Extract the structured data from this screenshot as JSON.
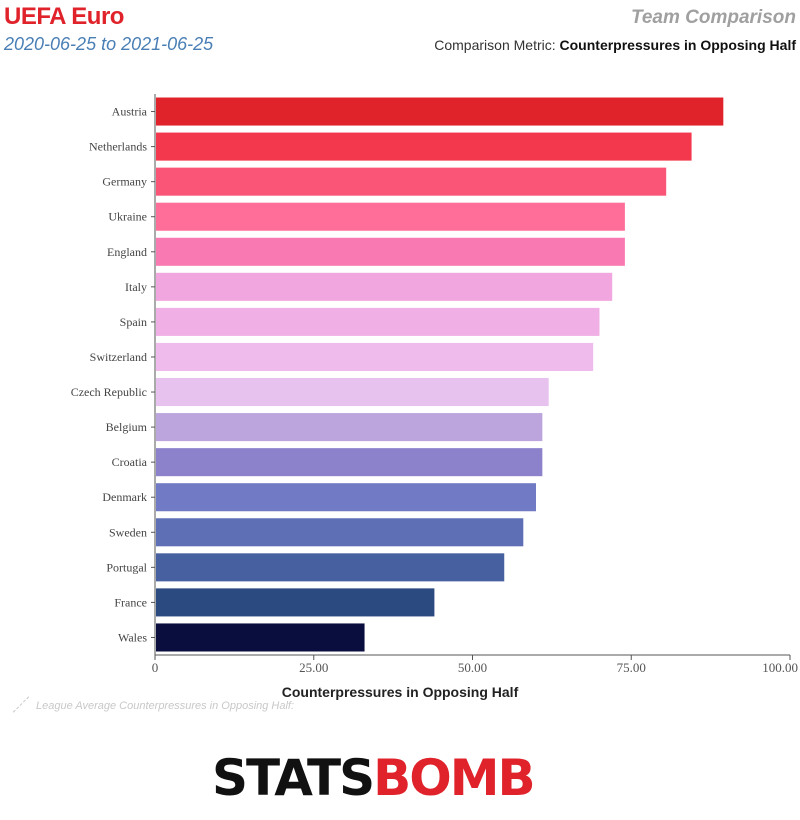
{
  "header": {
    "title": "UEFA Euro",
    "date_range": "2020-06-25 to 2021-06-25",
    "subtitle": "Team Comparison",
    "metric_prefix": "Comparison Metric: ",
    "metric_name": "Counterpressures in Opposing Half"
  },
  "legend": {
    "league_average_label": "League Average Counterpressures in Opposing Half:"
  },
  "brand": {
    "part1": "STATS",
    "part2": "BOMB"
  },
  "chart_data": {
    "type": "bar",
    "orientation": "horizontal",
    "title": "",
    "xlabel": "Counterpressures in Opposing Half",
    "ylabel": "",
    "xlim": [
      0,
      100
    ],
    "x_ticks": [
      "0",
      "25.00",
      "50.00",
      "75.00",
      "100.00"
    ],
    "grid": false,
    "categories": [
      "Austria",
      "Netherlands",
      "Germany",
      "Ukraine",
      "England",
      "Italy",
      "Spain",
      "Switzerland",
      "Czech Republic",
      "Belgium",
      "Croatia",
      "Denmark",
      "Sweden",
      "Portugal",
      "France",
      "Wales"
    ],
    "values": [
      89.5,
      84.5,
      80.5,
      74,
      74,
      72,
      70,
      69,
      62,
      61,
      61,
      60,
      58,
      55,
      44,
      33
    ],
    "colors": [
      "#e0232b",
      "#f3384d",
      "#fa5476",
      "#ff6e98",
      "#f979b2",
      "#f2a6df",
      "#f0b0e5",
      "#eebbec",
      "#e8c2ef",
      "#bca4dd",
      "#8b82cb",
      "#717ac5",
      "#5e6fb6",
      "#47609f",
      "#2b4a80",
      "#0a0e3e"
    ]
  }
}
